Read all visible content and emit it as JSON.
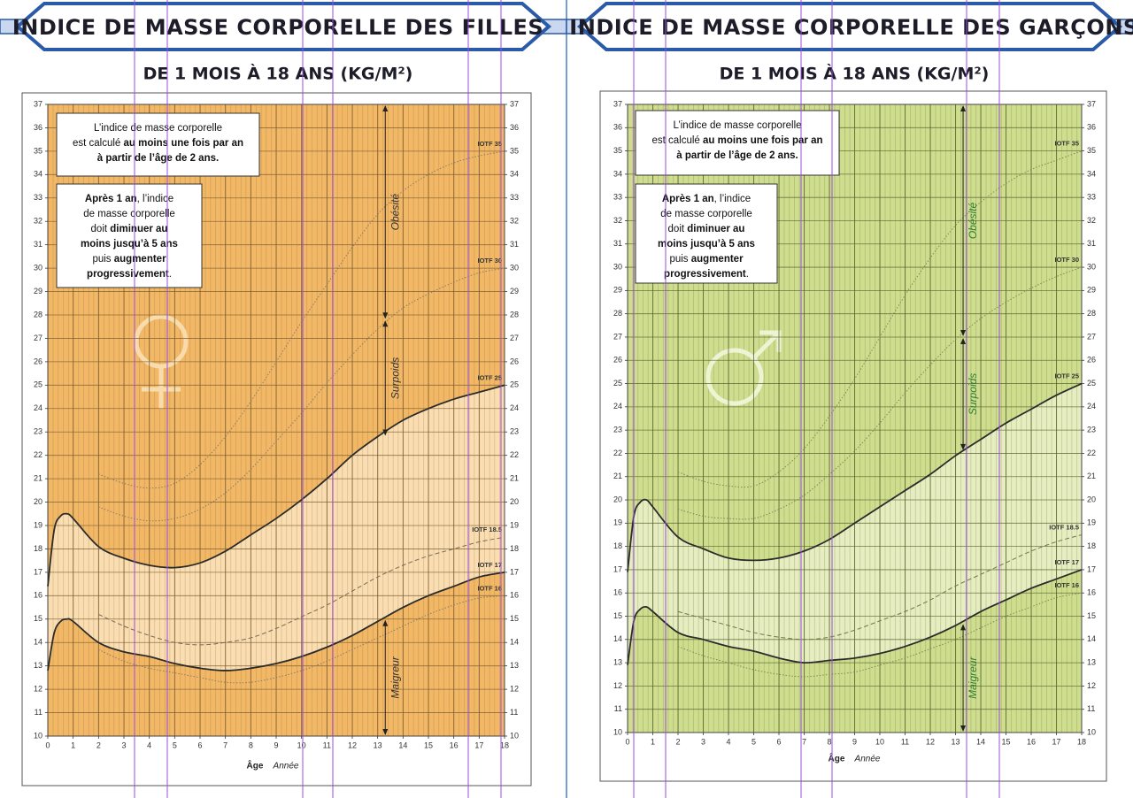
{
  "chart_data": [
    {
      "type": "line",
      "title": "INDICE DE MASSE CORPORELLE DES FILLES",
      "subtitle": "DE 1 MOIS À 18 ANS (KG/M²)",
      "x_label": "Âge",
      "x_unit": "Année",
      "x": [
        0,
        0.25,
        0.5,
        0.75,
        1,
        2,
        3,
        4,
        5,
        6,
        7,
        8,
        9,
        10,
        11,
        12,
        13,
        14,
        15,
        16,
        17,
        18
      ],
      "xlim": [
        0,
        18
      ],
      "ylim": [
        10,
        37
      ],
      "xticks": [
        0,
        1,
        2,
        3,
        4,
        5,
        6,
        7,
        8,
        9,
        10,
        11,
        12,
        13,
        14,
        15,
        16,
        17,
        18
      ],
      "yticks": [
        10,
        11,
        12,
        13,
        14,
        15,
        16,
        17,
        18,
        19,
        20,
        21,
        22,
        23,
        24,
        25,
        26,
        27,
        28,
        29,
        30,
        31,
        32,
        33,
        34,
        35,
        36,
        37
      ],
      "grid": true,
      "background": "#f2b866",
      "band_color": "#fbe4c0",
      "series": [
        {
          "name": "IOTF 35",
          "color": "#8a7a66",
          "style": "dotted",
          "values": [
            null,
            null,
            null,
            null,
            null,
            21.2,
            20.8,
            20.6,
            20.8,
            21.6,
            22.8,
            24.3,
            26.0,
            27.7,
            29.3,
            30.9,
            32.3,
            33.3,
            34.0,
            34.5,
            34.8,
            35.0
          ]
        },
        {
          "name": "IOTF 30",
          "color": "#8a7a66",
          "style": "dotted",
          "values": [
            null,
            null,
            null,
            null,
            null,
            19.8,
            19.4,
            19.2,
            19.3,
            19.7,
            20.4,
            21.4,
            22.6,
            23.8,
            25.1,
            26.3,
            27.4,
            28.3,
            28.9,
            29.4,
            29.8,
            30.0
          ]
        },
        {
          "name": "IOTF 25",
          "color": "#2b2b2b",
          "style": "solid",
          "values": [
            16.4,
            18.8,
            19.4,
            19.5,
            19.3,
            18.1,
            17.6,
            17.3,
            17.2,
            17.4,
            17.9,
            18.6,
            19.3,
            20.1,
            21.0,
            22.0,
            22.8,
            23.5,
            24.0,
            24.4,
            24.7,
            25.0
          ]
        },
        {
          "name": "IOTF 18.5",
          "color": "#7a6a56",
          "style": "dashed",
          "values": [
            null,
            null,
            null,
            null,
            null,
            15.2,
            14.7,
            14.3,
            14.0,
            13.9,
            14.0,
            14.2,
            14.6,
            15.1,
            15.6,
            16.2,
            16.8,
            17.3,
            17.7,
            18.0,
            18.3,
            18.5
          ]
        },
        {
          "name": "IOTF 17",
          "color": "#2b2b2b",
          "style": "solid",
          "values": [
            12.8,
            14.4,
            14.9,
            15.0,
            14.9,
            14.0,
            13.6,
            13.4,
            13.1,
            12.9,
            12.8,
            12.9,
            13.1,
            13.4,
            13.8,
            14.3,
            14.9,
            15.5,
            16.0,
            16.4,
            16.8,
            17.0
          ]
        },
        {
          "name": "IOTF 16",
          "color": "#8a7a66",
          "style": "dotted",
          "values": [
            null,
            null,
            null,
            null,
            null,
            13.7,
            13.2,
            12.9,
            12.7,
            12.5,
            12.3,
            12.3,
            12.5,
            12.8,
            13.2,
            13.7,
            14.2,
            14.7,
            15.2,
            15.6,
            15.9,
            16.0
          ]
        }
      ],
      "annotations": [
        {
          "text": "Obésité",
          "x": 13.3,
          "y": [
            37,
            27.8
          ]
        },
        {
          "text": "Surpoids",
          "x": 13.3,
          "y": [
            27.8,
            22.8
          ]
        },
        {
          "text": "Maigreur",
          "x": 13.3,
          "y": [
            15,
            10
          ]
        }
      ],
      "notes": [
        {
          "lines": [
            [
              {
                "text": "L’indice de masse corporelle"
              }
            ],
            [
              {
                "text": "est calculé "
              },
              {
                "text": "au moins une fois par an",
                "bold": true
              }
            ],
            [
              {
                "text": "à partir de l’âge de 2 ans.",
                "bold": true
              }
            ]
          ]
        },
        {
          "lines": [
            [
              {
                "text": "Après 1 an",
                "bold": true
              },
              {
                "text": ", l’indice"
              }
            ],
            [
              {
                "text": "de masse corporelle"
              }
            ],
            [
              {
                "text": "doit "
              },
              {
                "text": "diminuer au",
                "bold": true
              }
            ],
            [
              {
                "text": "moins jusqu’à 5 ans",
                "bold": true
              }
            ],
            [
              {
                "text": "puis "
              },
              {
                "text": "augmenter",
                "bold": true
              }
            ],
            [
              {
                "text": "progressivement",
                "bold": true
              },
              {
                "text": "."
              }
            ]
          ]
        }
      ]
    },
    {
      "type": "line",
      "title": "INDICE DE MASSE CORPORELLE DES GARÇONS",
      "subtitle": "DE 1 MOIS À 18 ANS (KG/M²)",
      "x_label": "Âge",
      "x_unit": "Année",
      "x": [
        0,
        0.25,
        0.5,
        0.75,
        1,
        2,
        3,
        4,
        5,
        6,
        7,
        8,
        9,
        10,
        11,
        12,
        13,
        14,
        15,
        16,
        17,
        18
      ],
      "xlim": [
        0,
        18
      ],
      "ylim": [
        10,
        37
      ],
      "xticks": [
        0,
        1,
        2,
        3,
        4,
        5,
        6,
        7,
        8,
        9,
        10,
        11,
        12,
        13,
        14,
        15,
        16,
        17,
        18
      ],
      "yticks": [
        10,
        11,
        12,
        13,
        14,
        15,
        16,
        17,
        18,
        19,
        20,
        21,
        22,
        23,
        24,
        25,
        26,
        27,
        28,
        29,
        30,
        31,
        32,
        33,
        34,
        35,
        36,
        37
      ],
      "grid": true,
      "background": "#cfdd8e",
      "band_color": "#eaf0c9",
      "series": [
        {
          "name": "IOTF 35",
          "color": "#7a8a5a",
          "style": "dotted",
          "values": [
            null,
            null,
            null,
            null,
            null,
            21.2,
            20.8,
            20.6,
            20.6,
            21.2,
            22.2,
            23.6,
            25.2,
            27.0,
            28.8,
            30.4,
            31.8,
            32.8,
            33.6,
            34.2,
            34.6,
            35.0
          ]
        },
        {
          "name": "IOTF 30",
          "color": "#7a8a5a",
          "style": "dotted",
          "values": [
            null,
            null,
            null,
            null,
            null,
            19.6,
            19.3,
            19.2,
            19.2,
            19.6,
            20.2,
            21.1,
            22.1,
            23.3,
            24.6,
            25.8,
            26.9,
            27.8,
            28.5,
            29.1,
            29.6,
            30.0
          ]
        },
        {
          "name": "IOTF 25",
          "color": "#2b2b2b",
          "style": "solid",
          "values": [
            16.9,
            19.3,
            19.9,
            20.0,
            19.7,
            18.4,
            17.9,
            17.5,
            17.4,
            17.5,
            17.8,
            18.3,
            19.0,
            19.7,
            20.4,
            21.1,
            21.9,
            22.6,
            23.3,
            23.9,
            24.5,
            25.0
          ]
        },
        {
          "name": "IOTF 18.5",
          "color": "#6a7a4a",
          "style": "dashed",
          "values": [
            null,
            null,
            null,
            null,
            null,
            15.2,
            14.9,
            14.6,
            14.3,
            14.1,
            14.0,
            14.1,
            14.4,
            14.8,
            15.2,
            15.7,
            16.3,
            16.8,
            17.3,
            17.8,
            18.2,
            18.5
          ]
        },
        {
          "name": "IOTF 17",
          "color": "#2b2b2b",
          "style": "solid",
          "values": [
            12.9,
            14.8,
            15.3,
            15.4,
            15.2,
            14.3,
            14.0,
            13.7,
            13.5,
            13.2,
            13.0,
            13.1,
            13.2,
            13.4,
            13.7,
            14.1,
            14.6,
            15.2,
            15.7,
            16.2,
            16.6,
            17.0
          ]
        },
        {
          "name": "IOTF 16",
          "color": "#7a8a5a",
          "style": "dotted",
          "values": [
            null,
            null,
            null,
            null,
            null,
            13.7,
            13.3,
            13.0,
            12.7,
            12.5,
            12.4,
            12.5,
            12.6,
            12.9,
            13.2,
            13.6,
            14.0,
            14.5,
            15.0,
            15.4,
            15.8,
            16.0
          ]
        }
      ],
      "annotations": [
        {
          "text": "Obésité",
          "x": 13.3,
          "y": [
            37,
            27
          ]
        },
        {
          "text": "Surpoids",
          "x": 13.3,
          "y": [
            27,
            22.1
          ]
        },
        {
          "text": "Maigreur",
          "x": 13.3,
          "y": [
            14.7,
            10
          ]
        }
      ],
      "notes": [
        {
          "lines": [
            [
              {
                "text": "L’indice de masse corporelle"
              }
            ],
            [
              {
                "text": "est calculé "
              },
              {
                "text": "au moins une fois par an",
                "bold": true
              }
            ],
            [
              {
                "text": "à partir de l’âge de 2 ans.",
                "bold": true
              }
            ]
          ]
        },
        {
          "lines": [
            [
              {
                "text": "Après 1 an",
                "bold": true
              },
              {
                "text": ", l’indice"
              }
            ],
            [
              {
                "text": "de masse corporelle"
              }
            ],
            [
              {
                "text": "doit "
              },
              {
                "text": "diminuer au",
                "bold": true
              }
            ],
            [
              {
                "text": "moins jusqu’à 5 ans",
                "bold": true
              }
            ],
            [
              {
                "text": "puis "
              },
              {
                "text": "augmenter",
                "bold": true
              }
            ],
            [
              {
                "text": "progressivement",
                "bold": true
              },
              {
                "text": "."
              }
            ]
          ]
        }
      ]
    }
  ]
}
